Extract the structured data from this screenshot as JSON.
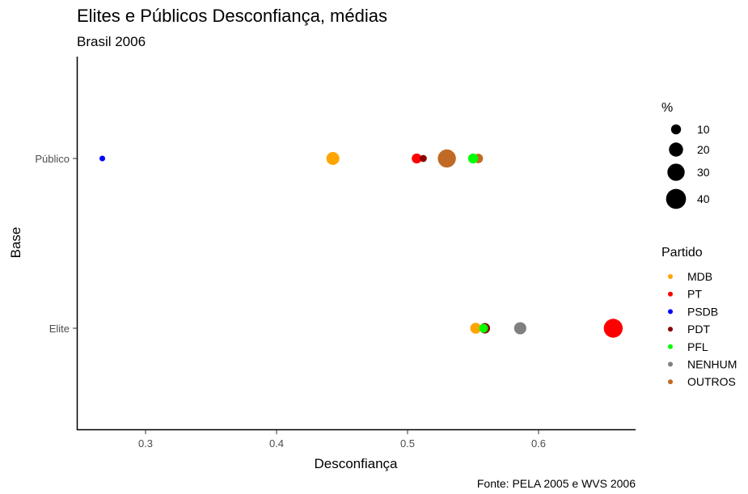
{
  "chart_data": {
    "type": "scatter",
    "title": "Elites e Públicos Desconfiança, médias",
    "subtitle": "Brasil 2006",
    "xlabel": "Desconfiança",
    "ylabel": "Base",
    "caption": "Fonte: PELA 2005 e WVS 2006",
    "xlim": [
      0.25,
      0.69
    ],
    "x_ticks": [
      "0.3",
      "0.4",
      "0.5",
      "0.6"
    ],
    "categories": [
      "Elite",
      "Público"
    ],
    "size_legend": {
      "title": "%",
      "entries": [
        {
          "label": "10",
          "value": 10
        },
        {
          "label": "20",
          "value": 20
        },
        {
          "label": "30",
          "value": 30
        },
        {
          "label": "40",
          "value": 40
        }
      ]
    },
    "color_legend": {
      "title": "Partido",
      "entries": [
        {
          "label": "MDB",
          "color": "#FFA500"
        },
        {
          "label": "PT",
          "color": "#FF0000"
        },
        {
          "label": "PSDB",
          "color": "#0000FF"
        },
        {
          "label": "PDT",
          "color": "#8B0000"
        },
        {
          "label": "PFL",
          "color": "#00FF00"
        },
        {
          "label": "NENHUM",
          "color": "#808080"
        },
        {
          "label": "OUTROS",
          "color": "#C06A25"
        }
      ]
    },
    "points": [
      {
        "base": "Público",
        "partido": "PSDB",
        "x": 0.267,
        "pct": 2
      },
      {
        "base": "Público",
        "partido": "MDB",
        "x": 0.443,
        "pct": 17
      },
      {
        "base": "Público",
        "partido": "PT",
        "x": 0.507,
        "pct": 10
      },
      {
        "base": "Público",
        "partido": "PDT",
        "x": 0.512,
        "pct": 5
      },
      {
        "base": "Público",
        "partido": "OUTROS",
        "x": 0.53,
        "pct": 33
      },
      {
        "base": "Público",
        "partido": "OUTROS",
        "x": 0.554,
        "pct": 9
      },
      {
        "base": "Público",
        "partido": "PFL",
        "x": 0.55,
        "pct": 10
      },
      {
        "base": "Elite",
        "partido": "MDB",
        "x": 0.552,
        "pct": 12
      },
      {
        "base": "Elite",
        "partido": "PDT",
        "x": 0.559,
        "pct": 11
      },
      {
        "base": "Elite",
        "partido": "PFL",
        "x": 0.558,
        "pct": 8
      },
      {
        "base": "Elite",
        "partido": "NENHUM",
        "x": 0.586,
        "pct": 15
      },
      {
        "base": "Elite",
        "partido": "PT",
        "x": 0.657,
        "pct": 36
      }
    ]
  }
}
